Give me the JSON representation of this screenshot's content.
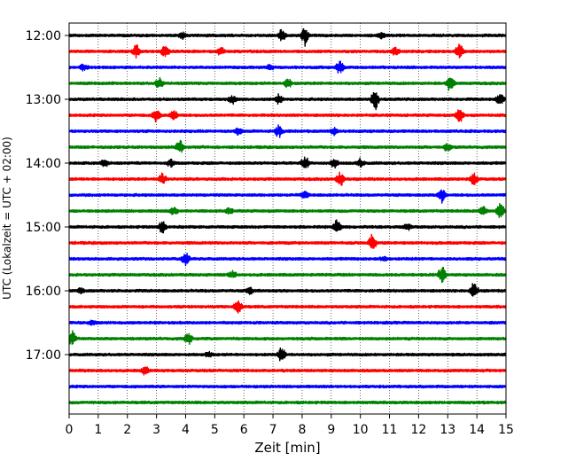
{
  "chart_data": {
    "type": "line",
    "title": "",
    "xlabel": "Zeit  [min]",
    "ylabel": "UTC (Lokalzeit = UTC + 02:00)",
    "xlim": [
      0,
      15
    ],
    "x_ticks": [
      "0",
      "1",
      "2",
      "3",
      "4",
      "5",
      "6",
      "7",
      "8",
      "9",
      "10",
      "11",
      "12",
      "13",
      "14",
      "15"
    ],
    "y_ticks": [
      "12:00",
      "13:00",
      "14:00",
      "15:00",
      "16:00",
      "17:00"
    ],
    "grid": "vertical dotted",
    "trace_colors": [
      "#000000",
      "#ff0000",
      "#0000ff",
      "#008000"
    ],
    "traces": [
      {
        "start": "12:00",
        "color": "#000000",
        "events": [
          [
            7.3,
            0.4
          ],
          [
            8.1,
            0.7
          ],
          [
            3.9,
            0.25
          ],
          [
            10.7,
            0.25
          ]
        ]
      },
      {
        "start": "12:15",
        "color": "#ff0000",
        "events": [
          [
            2.3,
            0.45
          ],
          [
            3.3,
            0.45
          ],
          [
            5.2,
            0.25
          ],
          [
            11.2,
            0.3
          ],
          [
            13.4,
            0.6
          ]
        ]
      },
      {
        "start": "12:30",
        "color": "#0000ff",
        "events": [
          [
            0.5,
            0.3
          ],
          [
            9.3,
            0.6
          ],
          [
            6.9,
            0.2
          ]
        ]
      },
      {
        "start": "12:45",
        "color": "#008000",
        "events": [
          [
            3.1,
            0.35
          ],
          [
            7.5,
            0.4
          ],
          [
            13.1,
            0.6
          ]
        ]
      },
      {
        "start": "13:00",
        "color": "#000000",
        "events": [
          [
            5.6,
            0.3
          ],
          [
            7.2,
            0.35
          ],
          [
            10.5,
            0.8
          ],
          [
            14.8,
            0.45
          ]
        ]
      },
      {
        "start": "13:15",
        "color": "#ff0000",
        "events": [
          [
            3.0,
            0.5
          ],
          [
            3.6,
            0.35
          ],
          [
            13.4,
            0.6
          ]
        ]
      },
      {
        "start": "13:30",
        "color": "#0000ff",
        "events": [
          [
            5.8,
            0.25
          ],
          [
            7.2,
            0.45
          ],
          [
            9.1,
            0.25
          ]
        ]
      },
      {
        "start": "13:45",
        "color": "#008000",
        "events": [
          [
            3.8,
            0.5
          ],
          [
            13.0,
            0.3
          ]
        ]
      },
      {
        "start": "14:00",
        "color": "#000000",
        "events": [
          [
            1.2,
            0.3
          ],
          [
            3.5,
            0.25
          ],
          [
            8.1,
            0.5
          ],
          [
            9.1,
            0.35
          ],
          [
            10.0,
            0.3
          ]
        ]
      },
      {
        "start": "14:15",
        "color": "#ff0000",
        "events": [
          [
            3.2,
            0.45
          ],
          [
            9.3,
            0.55
          ],
          [
            13.9,
            0.45
          ]
        ]
      },
      {
        "start": "14:30",
        "color": "#0000ff",
        "events": [
          [
            8.1,
            0.25
          ],
          [
            12.8,
            0.55
          ]
        ]
      },
      {
        "start": "14:45",
        "color": "#008000",
        "events": [
          [
            3.6,
            0.3
          ],
          [
            5.5,
            0.25
          ],
          [
            14.2,
            0.4
          ],
          [
            14.8,
            0.6
          ]
        ]
      },
      {
        "start": "15:00",
        "color": "#000000",
        "events": [
          [
            3.2,
            0.45
          ],
          [
            9.2,
            0.55
          ],
          [
            11.6,
            0.25
          ]
        ]
      },
      {
        "start": "15:15",
        "color": "#ff0000",
        "events": [
          [
            10.4,
            0.7
          ]
        ]
      },
      {
        "start": "15:30",
        "color": "#0000ff",
        "events": [
          [
            4.0,
            0.5
          ],
          [
            10.8,
            0.2
          ]
        ]
      },
      {
        "start": "15:45",
        "color": "#008000",
        "events": [
          [
            5.6,
            0.25
          ],
          [
            12.8,
            0.6
          ]
        ]
      },
      {
        "start": "16:00",
        "color": "#000000",
        "events": [
          [
            0.4,
            0.2
          ],
          [
            6.2,
            0.25
          ],
          [
            13.9,
            0.7
          ]
        ]
      },
      {
        "start": "16:15",
        "color": "#ff0000",
        "events": [
          [
            5.8,
            0.6
          ]
        ]
      },
      {
        "start": "16:30",
        "color": "#0000ff",
        "events": [
          [
            0.8,
            0.15
          ]
        ]
      },
      {
        "start": "16:45",
        "color": "#008000",
        "events": [
          [
            0.1,
            0.55
          ],
          [
            4.1,
            0.4
          ]
        ]
      },
      {
        "start": "17:00",
        "color": "#000000",
        "events": [
          [
            4.8,
            0.15
          ],
          [
            7.3,
            0.55
          ]
        ]
      },
      {
        "start": "17:15",
        "color": "#ff0000",
        "events": [
          [
            2.6,
            0.3
          ]
        ]
      },
      {
        "start": "17:30",
        "color": "#0000ff",
        "events": []
      },
      {
        "start": "17:45",
        "color": "#008000",
        "events": []
      }
    ]
  }
}
